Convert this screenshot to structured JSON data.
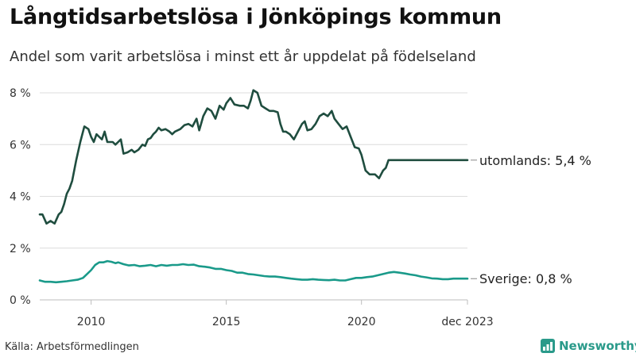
{
  "header": {
    "title": "Långtidsarbetslösa i Jönköpings kommun",
    "subtitle": "Andel som varit arbetslösa i minst ett år uppdelat på födelseland"
  },
  "footer": {
    "source": "Källa: Arbetsförmedlingen",
    "brand": "Newsworthy",
    "brand_icon": "bar-chart-icon"
  },
  "colors": {
    "foreign_born": "#1f4d3f",
    "sweden": "#1a9a8a",
    "grid": "#dcdcdc",
    "axis": "#bdbdbd",
    "brand": "#2a9a8a"
  },
  "chart_data": {
    "type": "line",
    "title": "Långtidsarbetslösa i Jönköpings kommun",
    "xlabel": "",
    "ylabel": "",
    "xlim": [
      2008.1,
      2023.92
    ],
    "ylim": [
      0,
      8
    ],
    "y_ticks": [
      0,
      2,
      4,
      6,
      8
    ],
    "y_tick_labels": [
      "0 %",
      "2 %",
      "4 %",
      "6 %",
      "8 %"
    ],
    "x_ticks": [
      2010,
      2015,
      2020,
      2023.92
    ],
    "x_tick_labels": [
      "2010",
      "2015",
      "2020",
      "dec 2023"
    ],
    "grid": "horizontal",
    "series": [
      {
        "name": "utomlands",
        "end_label": "utomlands: 5,4 %",
        "x": [
          2008.1,
          2008.2,
          2008.35,
          2008.5,
          2008.65,
          2008.8,
          2008.9,
          2009.0,
          2009.1,
          2009.2,
          2009.3,
          2009.45,
          2009.6,
          2009.75,
          2009.9,
          2010.0,
          2010.1,
          2010.2,
          2010.3,
          2010.4,
          2010.5,
          2010.6,
          2010.7,
          2010.8,
          2010.9,
          2011.0,
          2011.1,
          2011.2,
          2011.35,
          2011.5,
          2011.6,
          2011.75,
          2011.9,
          2012.0,
          2012.1,
          2012.2,
          2012.3,
          2012.4,
          2012.5,
          2012.6,
          2012.75,
          2012.9,
          2013.0,
          2013.1,
          2013.2,
          2013.3,
          2013.45,
          2013.6,
          2013.75,
          2013.9,
          2014.0,
          2014.15,
          2014.3,
          2014.45,
          2014.6,
          2014.75,
          2014.9,
          2015.0,
          2015.15,
          2015.3,
          2015.5,
          2015.65,
          2015.8,
          2015.9,
          2016.0,
          2016.15,
          2016.3,
          2016.45,
          2016.6,
          2016.75,
          2016.9,
          2017.0,
          2017.1,
          2017.2,
          2017.35,
          2017.5,
          2017.65,
          2017.8,
          2017.9,
          2018.0,
          2018.15,
          2018.3,
          2018.45,
          2018.6,
          2018.75,
          2018.9,
          2019.0,
          2019.15,
          2019.3,
          2019.45,
          2019.6,
          2019.75,
          2019.9,
          2020.0,
          2020.15,
          2020.3,
          2020.5,
          2020.65,
          2020.8,
          2020.9,
          2021.0,
          2021.15,
          2021.3,
          2021.45,
          2021.6,
          2021.75,
          2021.9,
          2022.0,
          2022.15,
          2022.3,
          2022.45,
          2022.6,
          2022.75,
          2022.85,
          2023.0,
          2023.15,
          2023.3,
          2023.45,
          2023.6,
          2023.75,
          2023.92
        ],
        "values": [
          3.3,
          3.3,
          2.95,
          3.05,
          2.95,
          3.3,
          3.4,
          3.7,
          4.1,
          4.3,
          4.6,
          5.4,
          6.1,
          6.7,
          6.6,
          6.3,
          6.1,
          6.4,
          6.3,
          6.2,
          6.5,
          6.1,
          6.1,
          6.1,
          6.0,
          6.1,
          6.2,
          5.65,
          5.7,
          5.8,
          5.7,
          5.8,
          6.0,
          5.95,
          6.2,
          6.25,
          6.4,
          6.5,
          6.65,
          6.55,
          6.6,
          6.5,
          6.4,
          6.5,
          6.55,
          6.6,
          6.75,
          6.8,
          6.7,
          7.0,
          6.55,
          7.1,
          7.4,
          7.3,
          7.0,
          7.5,
          7.35,
          7.6,
          7.8,
          7.55,
          7.5,
          7.5,
          7.4,
          7.7,
          8.1,
          8.0,
          7.5,
          7.4,
          7.3,
          7.3,
          7.25,
          6.8,
          6.5,
          6.5,
          6.4,
          6.2,
          6.5,
          6.8,
          6.9,
          6.55,
          6.6,
          6.8,
          7.1,
          7.2,
          7.1,
          7.3,
          7.0,
          6.8,
          6.6,
          6.7,
          6.3,
          5.9,
          5.85,
          5.6,
          5.0,
          4.85,
          4.85,
          4.7,
          5.0,
          5.1,
          5.4,
          5.4,
          5.4,
          5.4,
          5.4,
          5.4,
          5.4,
          5.4,
          5.4,
          5.4,
          5.4,
          5.4,
          5.4,
          5.4,
          5.4,
          5.4,
          5.4,
          5.4,
          5.4,
          5.4,
          5.4
        ]
      },
      {
        "name": "Sverige",
        "end_label": "Sverige: 0,8 %",
        "x": [
          2008.1,
          2008.3,
          2008.5,
          2008.7,
          2008.9,
          2009.1,
          2009.3,
          2009.5,
          2009.7,
          2009.85,
          2010.0,
          2010.15,
          2010.3,
          2010.45,
          2010.6,
          2010.75,
          2010.9,
          2011.0,
          2011.2,
          2011.4,
          2011.6,
          2011.8,
          2012.0,
          2012.2,
          2012.4,
          2012.6,
          2012.8,
          2013.0,
          2013.2,
          2013.4,
          2013.6,
          2013.8,
          2014.0,
          2014.2,
          2014.4,
          2014.6,
          2014.8,
          2015.0,
          2015.2,
          2015.4,
          2015.6,
          2015.8,
          2016.0,
          2016.2,
          2016.4,
          2016.6,
          2016.8,
          2017.0,
          2017.2,
          2017.4,
          2017.6,
          2017.8,
          2018.0,
          2018.2,
          2018.4,
          2018.6,
          2018.8,
          2019.0,
          2019.2,
          2019.4,
          2019.6,
          2019.8,
          2020.0,
          2020.2,
          2020.4,
          2020.6,
          2020.8,
          2021.0,
          2021.2,
          2021.4,
          2021.6,
          2021.8,
          2022.0,
          2022.2,
          2022.4,
          2022.6,
          2022.8,
          2023.0,
          2023.2,
          2023.4,
          2023.6,
          2023.8,
          2023.92
        ],
        "values": [
          0.75,
          0.7,
          0.7,
          0.68,
          0.7,
          0.72,
          0.75,
          0.78,
          0.85,
          1.0,
          1.15,
          1.35,
          1.45,
          1.45,
          1.5,
          1.47,
          1.42,
          1.45,
          1.38,
          1.33,
          1.35,
          1.3,
          1.32,
          1.35,
          1.3,
          1.35,
          1.32,
          1.35,
          1.35,
          1.38,
          1.35,
          1.36,
          1.3,
          1.28,
          1.25,
          1.2,
          1.2,
          1.15,
          1.12,
          1.05,
          1.05,
          1.0,
          0.98,
          0.95,
          0.92,
          0.9,
          0.9,
          0.88,
          0.85,
          0.82,
          0.8,
          0.78,
          0.78,
          0.8,
          0.78,
          0.77,
          0.76,
          0.78,
          0.75,
          0.75,
          0.8,
          0.85,
          0.85,
          0.88,
          0.9,
          0.95,
          1.0,
          1.05,
          1.08,
          1.05,
          1.02,
          0.98,
          0.95,
          0.9,
          0.87,
          0.83,
          0.82,
          0.8,
          0.8,
          0.82,
          0.82,
          0.82,
          0.82
        ]
      }
    ]
  }
}
